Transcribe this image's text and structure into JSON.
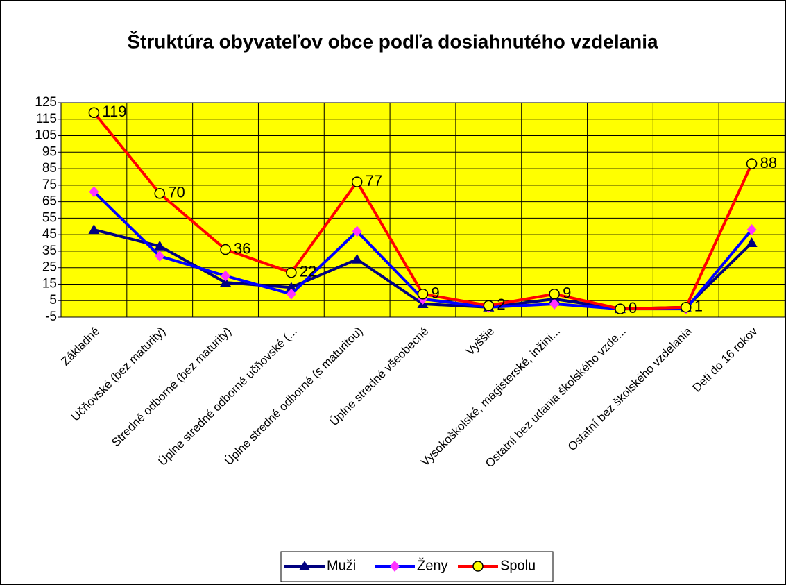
{
  "chart_data": {
    "type": "line",
    "title": "Štruktúra obyvateľov obce podľa dosiahnutého vzdelania",
    "categories": [
      "Základné",
      "Učňovské (bez maturity)",
      "Stredné odborné (bez maturity)",
      "Úplne stredné odborné učňovské (...",
      "Úplne stredné odborné (s maturitou)",
      "Úplne stredné všeobecné",
      "Vyššie",
      "Vysokoškolské, magisterské, inžini...",
      "Ostatní bez udania školského vzde...",
      "Ostatní bez školského vzdelania",
      "Deti do 16 rokov"
    ],
    "series": [
      {
        "name": "Muži",
        "color": "#000080",
        "marker": "triangle",
        "marker_color": "#000080",
        "values": [
          48,
          38,
          16,
          13,
          30,
          3,
          1,
          6,
          0,
          1,
          40
        ]
      },
      {
        "name": "Ženy",
        "color": "#0000ff",
        "marker": "diamond",
        "marker_color": "#ff33ff",
        "values": [
          71,
          32,
          20,
          9,
          47,
          6,
          1,
          3,
          0,
          0,
          48
        ]
      },
      {
        "name": "Spolu",
        "color": "#ff0000",
        "marker": "circle",
        "marker_color": "#ffff00",
        "values": [
          119,
          70,
          36,
          22,
          77,
          9,
          2,
          9,
          0,
          1,
          88
        ],
        "data_labels": true
      }
    ],
    "ylim": [
      -5,
      125
    ],
    "yticks": [
      -5,
      5,
      15,
      25,
      35,
      45,
      55,
      65,
      75,
      85,
      95,
      105,
      115,
      125
    ],
    "grid": true,
    "plot_background": "#ffff00",
    "legend": "bottom"
  }
}
